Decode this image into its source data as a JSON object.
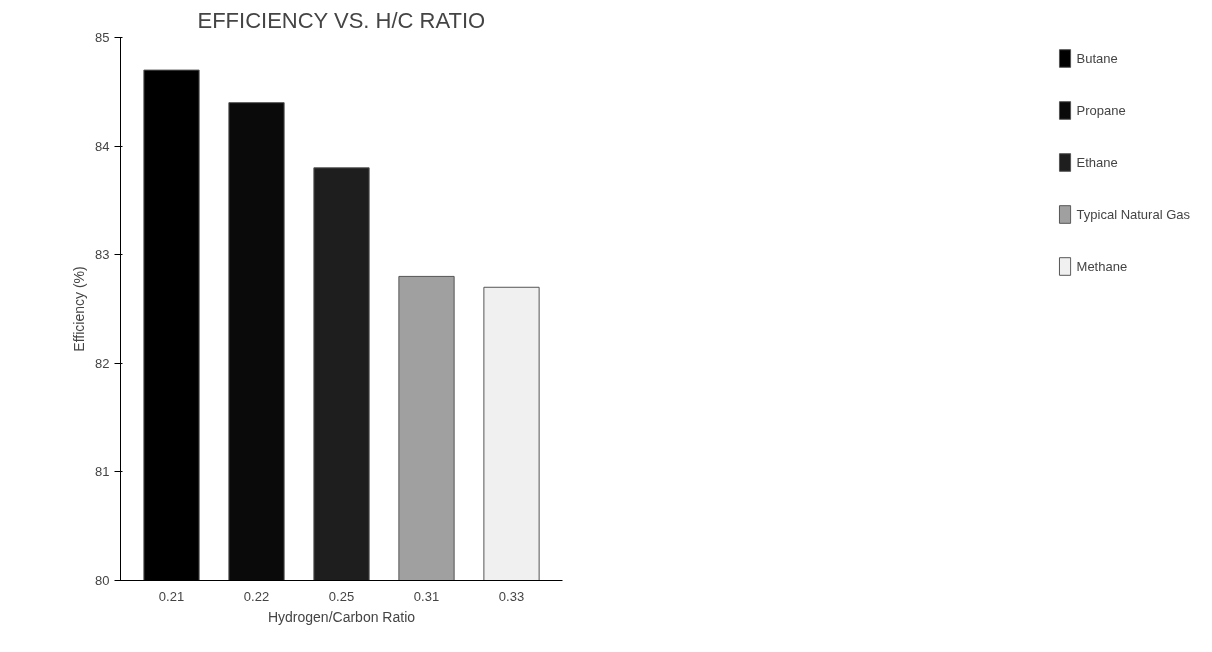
{
  "chart_data": {
    "type": "bar",
    "title": "EFFICIENCY VS. H/C RATIO",
    "xlabel": "Hydrogen/Carbon Ratio",
    "ylabel": "Efficiency (%)",
    "categories": [
      "0.21",
      "0.22",
      "0.25",
      "0.31",
      "0.33"
    ],
    "series": [
      {
        "name": "Butane",
        "color": "#000000",
        "values": [
          84.7,
          null,
          null,
          null,
          null
        ]
      },
      {
        "name": "Propane",
        "color": "#0a0a0a",
        "values": [
          null,
          84.4,
          null,
          null,
          null
        ]
      },
      {
        "name": "Ethane",
        "color": "#1e1e1e",
        "values": [
          null,
          null,
          83.8,
          null,
          null
        ]
      },
      {
        "name": "Typical Natural Gas",
        "color": "#a0a0a0",
        "values": [
          null,
          null,
          null,
          82.8,
          null
        ]
      },
      {
        "name": "Methane",
        "color": "#f0f0f0",
        "values": [
          null,
          null,
          null,
          null,
          82.7
        ]
      }
    ],
    "ylim": [
      80,
      85
    ],
    "yticks": [
      80,
      81,
      82,
      83,
      84,
      85
    ],
    "grid": false,
    "legend": "right"
  }
}
